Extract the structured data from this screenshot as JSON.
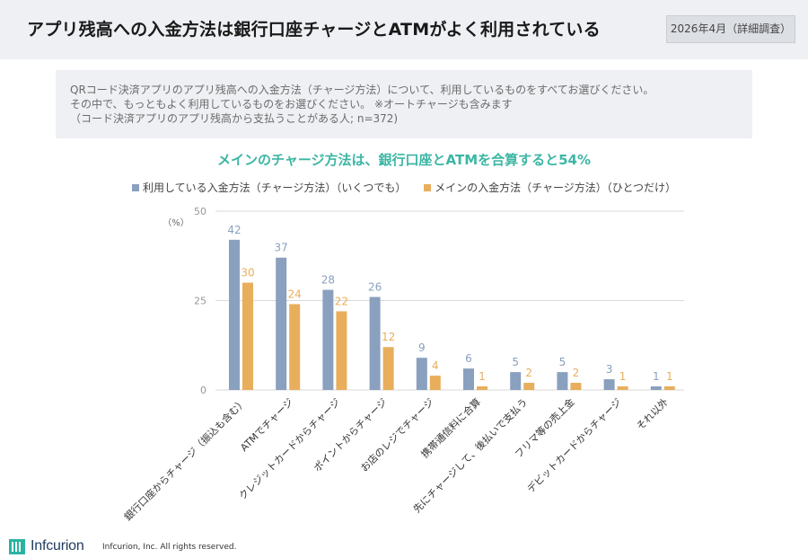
{
  "header": {
    "title": "アプリ残高への入金方法は銀行口座チャージとATMがよく利用されている",
    "date": "2026年4月（詳細調査）"
  },
  "question": {
    "line1": "QRコード決済アプリのアプリ残高への入金方法（チャージ方法）について、利用しているものをすべてお選びください。",
    "line2": "その中で、もっともよく利用しているものをお選びください。 ※オートチャージも含みます",
    "line3": "（コード決済アプリのアプリ残高から支払うことがある人; n=372)"
  },
  "chart_data": {
    "type": "bar",
    "title": "メインのチャージ方法は、銀行口座とATMを合算すると54%",
    "ylabel": "（%）",
    "ylim": [
      0,
      50
    ],
    "yticks": [
      0,
      25,
      50
    ],
    "grid": true,
    "legend_position": "top",
    "categories": [
      "銀行口座からチャージ（振込も含む）",
      "ATMでチャージ",
      "クレジットカードからチャージ",
      "ポイントからチャージ",
      "お店のレジでチャージ",
      "携帯通信料に合算",
      "先にチャージして、後払いで支払う",
      "フリマ等の売上金",
      "デビットカードからチャージ",
      "それ以外"
    ],
    "series": [
      {
        "name": "利用している入金方法（チャージ方法）（いくつでも）",
        "color": "#8aa0bf",
        "values": [
          42,
          37,
          28,
          26,
          9,
          6,
          5,
          5,
          3,
          1
        ]
      },
      {
        "name": "メインの入金方法（チャージ方法）（ひとつだけ）",
        "color": "#e8ae5c",
        "values": [
          30,
          24,
          22,
          12,
          4,
          1,
          2,
          2,
          1,
          1
        ]
      }
    ]
  },
  "footer": {
    "logo_text": "Infcurion",
    "copyright": "Infcurion, Inc.  All rights reserved."
  }
}
